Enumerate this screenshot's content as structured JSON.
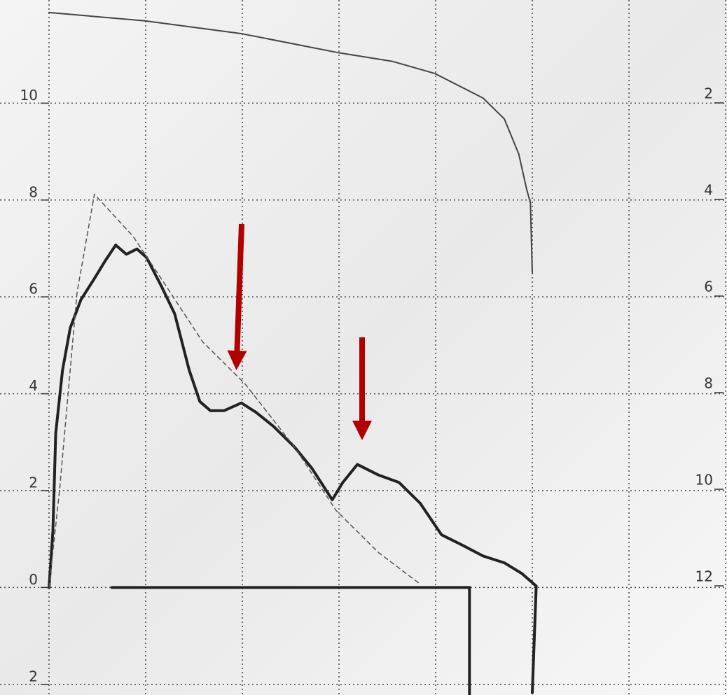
{
  "chart_data": {
    "type": "line",
    "xlim": [
      -0.507,
      7.014
    ],
    "xticks": [
      0,
      1,
      2,
      3,
      4,
      5,
      6,
      7
    ],
    "ylim": [
      -2.22,
      12.13
    ],
    "yticks": [
      {
        "value": -2,
        "label": "2"
      },
      0,
      2,
      4,
      6,
      8,
      10
    ],
    "y2lim": [
      14.26,
      -0.13
    ],
    "y2ticks": [
      2,
      4,
      6,
      8,
      10,
      12
    ],
    "grid": true,
    "series": [
      {
        "color": "#444444",
        "width": 2,
        "dashed": false,
        "axis": "y2",
        "x": [
          0,
          0.99,
          2.0,
          2.99,
          3.55,
          3.99,
          4.49,
          4.71,
          4.86,
          4.94,
          4.98,
          5.0
        ],
        "values": [
          0.13,
          0.3,
          0.57,
          0.96,
          1.14,
          1.39,
          1.9,
          2.33,
          3.06,
          3.78,
          4.07,
          5.52
        ]
      },
      {
        "color": "#222222",
        "width": 4,
        "dashed": false,
        "x": [
          0,
          0.04,
          0.07,
          0.14,
          0.22,
          0.33,
          0.47,
          0.58,
          0.69,
          0.8,
          0.91,
          1.01,
          1.16,
          1.3,
          1.45,
          1.56,
          1.67,
          1.81,
          1.99,
          2.14,
          2.32,
          2.54,
          2.72,
          2.93,
          3.04,
          3.19,
          3.41,
          3.62,
          3.84,
          4.06,
          4.28,
          4.49,
          4.71,
          4.89,
          5.04,
          5.0
        ],
        "values": [
          0,
          1.16,
          3.19,
          4.49,
          5.36,
          5.94,
          6.38,
          6.74,
          7.07,
          6.88,
          6.99,
          6.81,
          6.23,
          5.65,
          4.49,
          3.84,
          3.65,
          3.65,
          3.81,
          3.62,
          3.33,
          2.9,
          2.46,
          1.81,
          2.17,
          2.54,
          2.32,
          2.17,
          1.74,
          1.09,
          0.87,
          0.65,
          0.51,
          0.29,
          0.03,
          -2.17
        ]
      },
      {
        "color": "#555555",
        "width": 1.5,
        "dashed": true,
        "x": [
          0,
          0.11,
          0.29,
          0.47,
          0.87,
          1.16,
          1.59,
          2.03,
          2.54,
          2.97,
          3.41,
          3.84
        ],
        "values": [
          0,
          2.03,
          6.09,
          8.12,
          7.25,
          6.38,
          5.07,
          4.2,
          2.9,
          1.59,
          0.72,
          0.07
        ]
      },
      {
        "color": "#222222",
        "width": 4,
        "dashed": false,
        "x": [
          0.65,
          4.35,
          4.35
        ],
        "values": [
          0,
          0,
          -2.22
        ]
      }
    ]
  }
}
